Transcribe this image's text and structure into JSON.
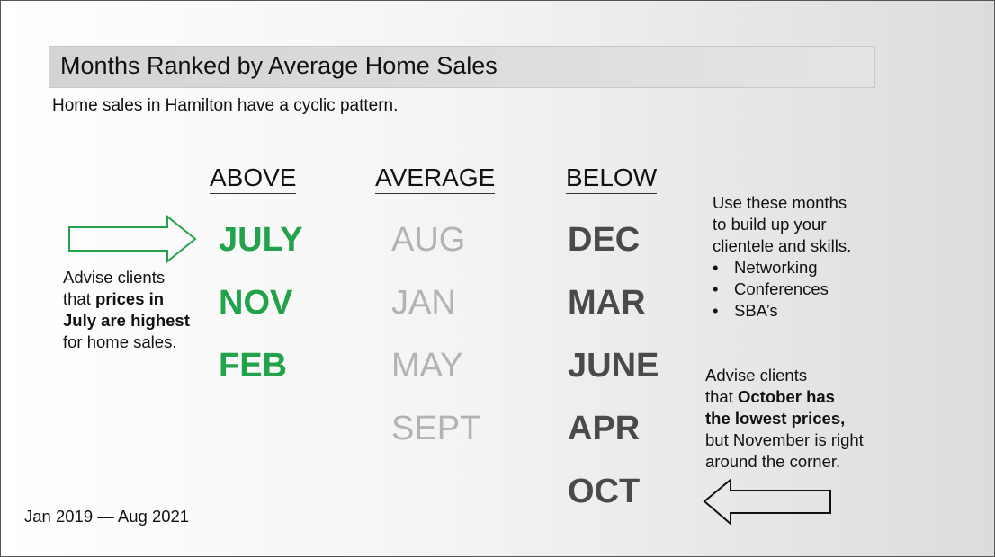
{
  "title": "Months Ranked by Average Home Sales",
  "subtitle": "Home sales in Hamilton have a cyclic pattern.",
  "columns": {
    "above": {
      "header": "ABOVE",
      "months": [
        "JULY",
        "NOV",
        "FEB"
      ]
    },
    "average": {
      "header": "AVERAGE",
      "months": [
        "AUG",
        "JAN",
        "MAY",
        "SEPT"
      ]
    },
    "below": {
      "header": "BELOW",
      "months": [
        "DEC",
        "MAR",
        "JUNE",
        "APR",
        "OCT"
      ]
    }
  },
  "left_note": {
    "line1": "Advise clients",
    "line2_pre": "that ",
    "line2_bold": "prices in",
    "line3_bold": "July are highest",
    "line4": "for home sales."
  },
  "tip": {
    "lines": [
      "Use these months",
      "to build up your",
      "clientele and skills."
    ],
    "bullet_symbol": "•",
    "bullets": [
      "Networking",
      "Conferences",
      "SBA’s"
    ]
  },
  "right_note": {
    "line1": "Advise clients",
    "line2_pre": "that ",
    "line2_bold": "October has",
    "line3_bold": "the lowest prices,",
    "line4": "but November is right",
    "line5": "around the corner."
  },
  "date_range": "Jan 2019 — Aug 2021",
  "colors": {
    "above": "#22a24a",
    "average": "#b3b3b3",
    "below": "#4a4a4a",
    "arrow_green": "#22a24a",
    "arrow_black": "#111111"
  },
  "icons": {
    "left_arrow": "arrow-right-outline-icon",
    "right_arrow": "arrow-left-outline-icon"
  }
}
